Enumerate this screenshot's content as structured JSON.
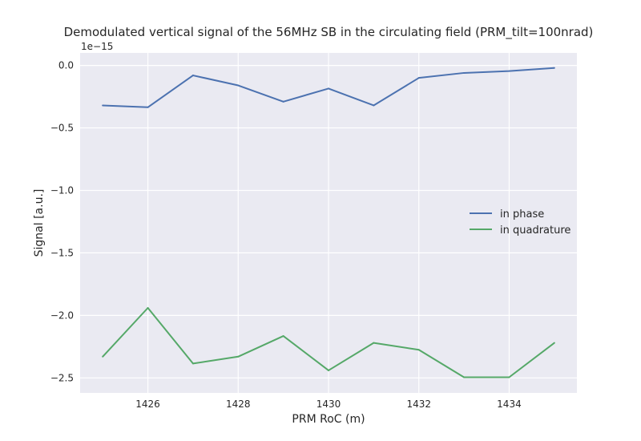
{
  "chart_data": {
    "type": "line",
    "title": "Demodulated vertical signal of the 56MHz SB in the circulating field (PRM_tilt=100nrad)",
    "xlabel": "PRM RoC (m)",
    "ylabel": "Signal [a.u.]",
    "offset_text": "1e−15",
    "x": [
      1425,
      1426,
      1427,
      1428,
      1429,
      1430,
      1431,
      1432,
      1433,
      1434,
      1435
    ],
    "xlim": [
      1424.5,
      1435.5
    ],
    "ylim": [
      -2.62,
      0.1
    ],
    "grid": true,
    "legend_position": "center-right",
    "x_ticks": [
      {
        "value": 1426,
        "label": "1426"
      },
      {
        "value": 1428,
        "label": "1428"
      },
      {
        "value": 1430,
        "label": "1430"
      },
      {
        "value": 1432,
        "label": "1432"
      },
      {
        "value": 1434,
        "label": "1434"
      }
    ],
    "y_ticks": [
      {
        "value": 0.0,
        "label": "0.0"
      },
      {
        "value": -0.5,
        "label": "−0.5"
      },
      {
        "value": -1.0,
        "label": "−1.0"
      },
      {
        "value": -1.5,
        "label": "−1.5"
      },
      {
        "value": -2.0,
        "label": "−2.0"
      },
      {
        "value": -2.5,
        "label": "−2.5"
      }
    ],
    "series": [
      {
        "name": "in phase",
        "color": "#4c72b0",
        "values": [
          -0.32,
          -0.335,
          -0.08,
          -0.16,
          -0.29,
          -0.185,
          -0.32,
          -0.1,
          -0.06,
          -0.045,
          -0.02
        ]
      },
      {
        "name": "in quadrature",
        "color": "#55a868",
        "values": [
          -2.33,
          -1.94,
          -2.385,
          -2.33,
          -2.165,
          -2.44,
          -2.22,
          -2.275,
          -2.495,
          -2.495,
          -2.22
        ]
      }
    ],
    "colors": {
      "plot_background": "#eaeaf2",
      "grid": "#ffffff",
      "text": "#262626"
    }
  }
}
